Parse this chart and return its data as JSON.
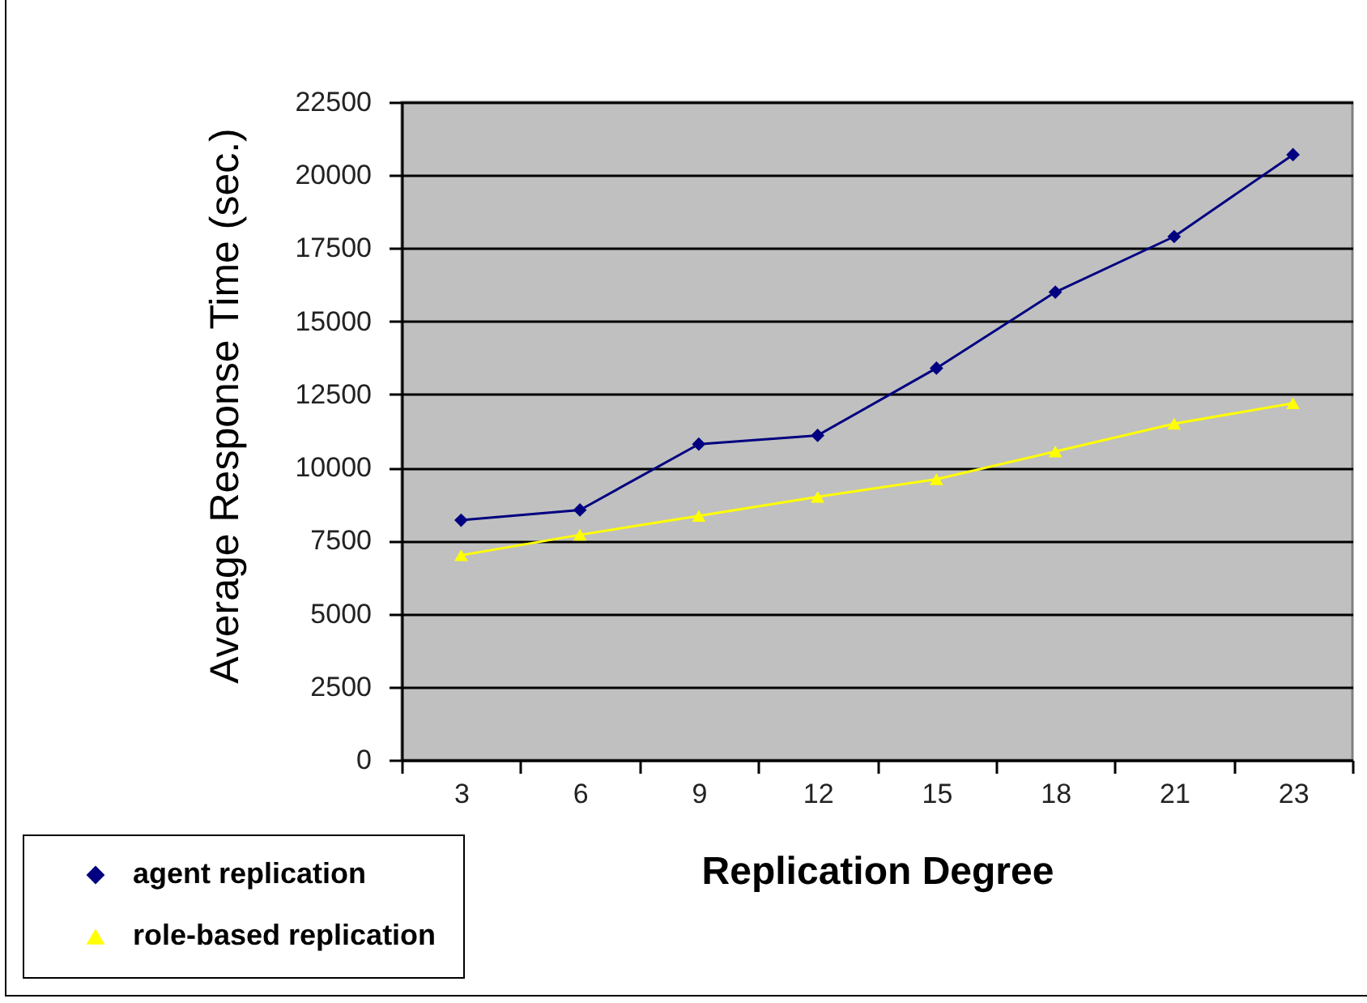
{
  "chart_data": {
    "type": "line",
    "xlabel": "Replication Degree",
    "ylabel": "Average Response Time (sec.)",
    "categories": [
      "3",
      "6",
      "9",
      "12",
      "15",
      "18",
      "21",
      "23"
    ],
    "series": [
      {
        "name": "agent replication",
        "color": "#000080",
        "marker": "diamond",
        "values": [
          8200,
          8550,
          10800,
          11100,
          13400,
          16000,
          17900,
          20700
        ]
      },
      {
        "name": "role-based replication",
        "color": "#ffff00",
        "marker": "triangle",
        "values": [
          7000,
          7700,
          8350,
          9000,
          9600,
          10550,
          11500,
          12200
        ]
      }
    ],
    "ylim": [
      0,
      22500
    ],
    "yticks": [
      0,
      2500,
      5000,
      7500,
      10000,
      12500,
      15000,
      17500,
      20000,
      22500
    ],
    "grid": "y",
    "legend": "bottom left"
  }
}
